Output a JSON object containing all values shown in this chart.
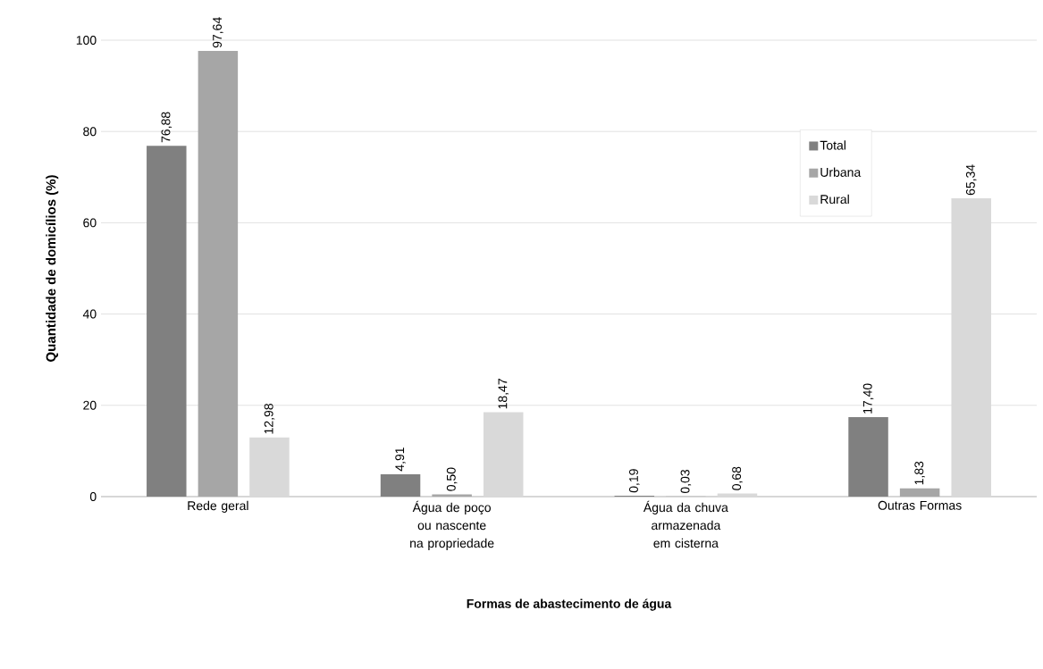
{
  "chart_data": {
    "type": "bar",
    "xlabel": "Formas de abastecimento de água",
    "ylabel": "Quantidade de domicílios (%)",
    "categories": [
      "Rede geral",
      "Água de poço ou nascente na propriedade",
      "Água da chuva armazenada em cisterna",
      "Outras Formas"
    ],
    "series": [
      {
        "name": "Total",
        "color": "#808080",
        "values": [
          76.88,
          4.91,
          0.19,
          17.4
        ],
        "value_labels": [
          "76,88",
          "4,91",
          "0,19",
          "17,40"
        ]
      },
      {
        "name": "Urbana",
        "color": "#a6a6a6",
        "values": [
          97.64,
          0.5,
          0.03,
          1.83
        ],
        "value_labels": [
          "97,64",
          "0,50",
          "0,03",
          "1,83"
        ]
      },
      {
        "name": "Rural",
        "color": "#d9d9d9",
        "values": [
          12.98,
          18.47,
          0.68,
          65.34
        ],
        "value_labels": [
          "12,98",
          "18,47",
          "0,68",
          "65,34"
        ]
      }
    ],
    "ylim": [
      0,
      100
    ],
    "yticks": [
      0,
      20,
      40,
      60,
      80,
      100
    ],
    "grid": "y",
    "legend": "right"
  }
}
